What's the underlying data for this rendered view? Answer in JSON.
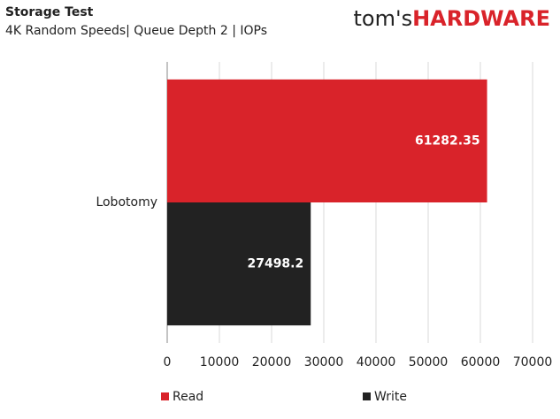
{
  "chart_data": {
    "type": "hbar",
    "title": "Storage Test",
    "subtitle": "4K Random Speeds| Queue Depth 2 | IOPs",
    "brand": {
      "prefix": "tom's",
      "name": "HARDWARE"
    },
    "categories": [
      "Lobotomy"
    ],
    "series": [
      {
        "name": "Read",
        "color": "#d9232a",
        "values": [
          61282.35
        ]
      },
      {
        "name": "Write",
        "color": "#222222",
        "values": [
          27498.2
        ]
      }
    ],
    "xlim": [
      0,
      70000
    ],
    "xticks": [
      0,
      10000,
      20000,
      30000,
      40000,
      50000,
      60000,
      70000
    ],
    "grid": true,
    "legend": "bottom"
  }
}
